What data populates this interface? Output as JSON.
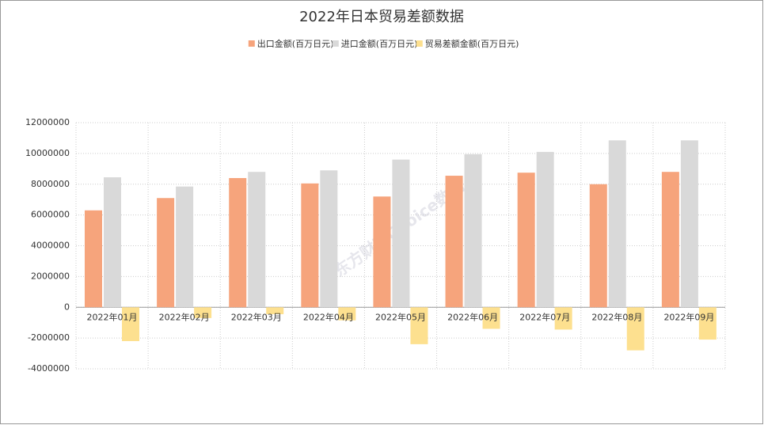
{
  "chart_data": {
    "type": "bar",
    "title": "2022年日本贸易差额数据",
    "watermark": "东方财富Choice数据",
    "categories": [
      "2022年01月",
      "2022年02月",
      "2022年03月",
      "2022年04月",
      "2022年05月",
      "2022年06月",
      "2022年07月",
      "2022年08月",
      "2022年09月"
    ],
    "series": [
      {
        "name": "出口金额(百万日元)",
        "color": "#f6a47c",
        "values": [
          6300000,
          7100000,
          8400000,
          8050000,
          7200000,
          8550000,
          8750000,
          8000000,
          8800000
        ]
      },
      {
        "name": "进口金额(百万日元)",
        "color": "#d9d9d9",
        "values": [
          8450000,
          7850000,
          8800000,
          8900000,
          9600000,
          9950000,
          10100000,
          10850000,
          10850000
        ]
      },
      {
        "name": "贸易差额金额(百万日元)",
        "color": "#fde08f",
        "values": [
          -2200000,
          -700000,
          -450000,
          -850000,
          -2400000,
          -1400000,
          -1450000,
          -2800000,
          -2100000
        ]
      }
    ],
    "ylim": [
      -4000000,
      12000000
    ],
    "yticks": [
      -4000000,
      -2000000,
      0,
      2000000,
      4000000,
      6000000,
      8000000,
      10000000,
      12000000
    ],
    "grid": true
  }
}
